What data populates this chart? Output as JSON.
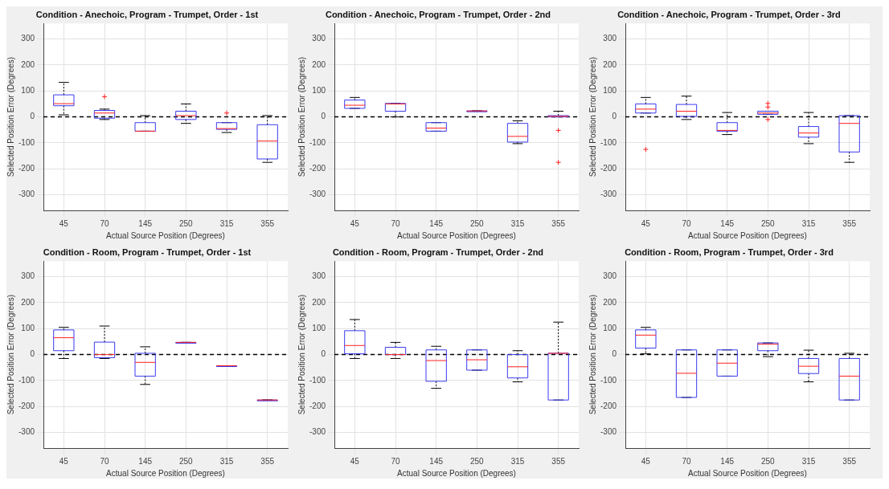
{
  "chart_data": [
    {
      "type": "box",
      "title": "Condition - Anechoic, Program - Trumpet, Order - 1st",
      "xlabel": "Actual Source Position (Degrees)",
      "ylabel": "Selected Position Error (Degrees)",
      "categories": [
        "45",
        "70",
        "145",
        "250",
        "315",
        "355"
      ],
      "ylim": [
        -360,
        360
      ],
      "yticks": [
        -300,
        -200,
        -100,
        0,
        100,
        200,
        300
      ],
      "grid": true,
      "ref_lines": [
        {
          "axis": "y",
          "value": 0,
          "color": "#000000",
          "line_style": "dashed"
        }
      ],
      "boxes": [
        {
          "low": 8,
          "q1": 43,
          "median": 51,
          "q3": 85,
          "high": 133
        },
        {
          "low": -10,
          "q1": -5,
          "median": 15,
          "q3": 25,
          "high": 30,
          "outliers": [
            78
          ]
        },
        {
          "low": -55,
          "q1": -55,
          "median": -55,
          "q3": -22,
          "high": 5
        },
        {
          "low": -25,
          "q1": -10,
          "median": 5,
          "q3": 22,
          "high": 50
        },
        {
          "low": -60,
          "q1": -48,
          "median": -45,
          "q3": -22,
          "high": -22,
          "outliers": [
            15
          ]
        },
        {
          "low": -175,
          "q1": -162,
          "median": -93,
          "q3": -30,
          "high": 5
        }
      ]
    },
    {
      "type": "box",
      "title": "Condition - Anechoic, Program - Trumpet, Order - 2nd",
      "xlabel": "Actual Source Position (Degrees)",
      "ylabel": "Selected Position Error (Degrees)",
      "categories": [
        "45",
        "70",
        "145",
        "250",
        "315",
        "355"
      ],
      "ylim": [
        -360,
        360
      ],
      "yticks": [
        -300,
        -200,
        -100,
        0,
        100,
        200,
        300
      ],
      "grid": true,
      "ref_lines": [
        {
          "axis": "y",
          "value": 0,
          "color": "#000000",
          "line_style": "dashed"
        }
      ],
      "boxes": [
        {
          "low": 33,
          "q1": 33,
          "median": 45,
          "q3": 65,
          "high": 75
        },
        {
          "low": 0,
          "q1": 22,
          "median": 50,
          "q3": 52,
          "high": 52
        },
        {
          "low": -55,
          "q1": -55,
          "median": -43,
          "q3": -22,
          "high": -22
        },
        {
          "low": 23,
          "q1": 23,
          "median": 23,
          "q3": 23,
          "high": 23
        },
        {
          "low": -103,
          "q1": -97,
          "median": -75,
          "q3": -25,
          "high": -15
        },
        {
          "low": 0,
          "q1": 0,
          "median": 2,
          "q3": 5,
          "high": 22,
          "outliers": [
            -52,
            -175
          ]
        }
      ]
    },
    {
      "type": "box",
      "title": "Condition - Anechoic, Program - Trumpet, Order - 3rd",
      "xlabel": "Actual Source Position (Degrees)",
      "ylabel": "Selected Position Error (Degrees)",
      "categories": [
        "45",
        "70",
        "145",
        "250",
        "315",
        "355"
      ],
      "ylim": [
        -360,
        360
      ],
      "yticks": [
        -300,
        -200,
        -100,
        0,
        100,
        200,
        300
      ],
      "grid": true,
      "ref_lines": [
        {
          "axis": "y",
          "value": 0,
          "color": "#000000",
          "line_style": "dashed"
        }
      ],
      "boxes": [
        {
          "low": 15,
          "q1": 15,
          "median": 30,
          "q3": 50,
          "high": 75,
          "outliers": [
            -125
          ]
        },
        {
          "low": -10,
          "q1": 2,
          "median": 22,
          "q3": 48,
          "high": 80
        },
        {
          "low": -68,
          "q1": -55,
          "median": -52,
          "q3": -22,
          "high": 17
        },
        {
          "low": 10,
          "q1": 10,
          "median": 15,
          "q3": 22,
          "high": 22,
          "outliers": [
            52,
            38,
            -10
          ]
        },
        {
          "low": -103,
          "q1": -78,
          "median": -62,
          "q3": -37,
          "high": 17
        },
        {
          "low": -175,
          "q1": -135,
          "median": -25,
          "q3": 5,
          "high": 5
        }
      ]
    },
    {
      "type": "box",
      "title": "Condition - Room, Program - Trumpet, Order - 1st",
      "xlabel": "Actual Source Position (Degrees)",
      "ylabel": "Selected Position Error (Degrees)",
      "categories": [
        "45",
        "70",
        "145",
        "250",
        "315",
        "355"
      ],
      "ylim": [
        -360,
        360
      ],
      "yticks": [
        -300,
        -200,
        -100,
        0,
        100,
        200,
        300
      ],
      "grid": true,
      "ref_lines": [
        {
          "axis": "y",
          "value": 0,
          "color": "#000000",
          "line_style": "dashed"
        }
      ],
      "boxes": [
        {
          "low": -15,
          "q1": 15,
          "median": 65,
          "q3": 95,
          "high": 105
        },
        {
          "low": -15,
          "q1": -12,
          "median": 0,
          "q3": 48,
          "high": 110
        },
        {
          "low": -115,
          "q1": -83,
          "median": -30,
          "q3": 5,
          "high": 30
        },
        {
          "low": 47,
          "q1": 47,
          "median": 47,
          "q3": 47,
          "high": 47
        },
        {
          "low": -43,
          "q1": -43,
          "median": -43,
          "q3": -43,
          "high": -43
        },
        {
          "low": -175,
          "q1": -175,
          "median": -175,
          "q3": -175,
          "high": -175
        }
      ]
    },
    {
      "type": "box",
      "title": "Condition - Room, Program - Trumpet, Order - 2nd",
      "xlabel": "Actual Source Position (Degrees)",
      "ylabel": "Selected Position Error (Degrees)",
      "categories": [
        "45",
        "70",
        "145",
        "250",
        "315",
        "355"
      ],
      "ylim": [
        -360,
        360
      ],
      "yticks": [
        -300,
        -200,
        -100,
        0,
        100,
        200,
        300
      ],
      "grid": true,
      "ref_lines": [
        {
          "axis": "y",
          "value": 0,
          "color": "#000000",
          "line_style": "dashed"
        }
      ],
      "boxes": [
        {
          "low": -15,
          "q1": 3,
          "median": 35,
          "q3": 92,
          "high": 135
        },
        {
          "low": -15,
          "q1": 0,
          "median": 0,
          "q3": 28,
          "high": 47
        },
        {
          "low": -130,
          "q1": -103,
          "median": -23,
          "q3": 18,
          "high": 32
        },
        {
          "low": -60,
          "q1": -60,
          "median": -20,
          "q3": 18,
          "high": 18
        },
        {
          "low": -105,
          "q1": -90,
          "median": -47,
          "q3": 0,
          "high": 15
        },
        {
          "low": -175,
          "q1": -175,
          "median": 5,
          "q3": 5,
          "high": 125
        }
      ]
    },
    {
      "type": "box",
      "title": "Condition - Room, Program - Trumpet, Order - 3rd",
      "xlabel": "Actual Source Position (Degrees)",
      "ylabel": "Selected Position Error (Degrees)",
      "categories": [
        "45",
        "70",
        "145",
        "250",
        "315",
        "355"
      ],
      "ylim": [
        -360,
        360
      ],
      "yticks": [
        -300,
        -200,
        -100,
        0,
        100,
        200,
        300
      ],
      "grid": true,
      "ref_lines": [
        {
          "axis": "y",
          "value": 0,
          "color": "#000000",
          "line_style": "dashed"
        }
      ],
      "boxes": [
        {
          "low": 3,
          "q1": 25,
          "median": 75,
          "q3": 95,
          "high": 105
        },
        {
          "low": -165,
          "q1": -165,
          "median": -72,
          "q3": 18,
          "high": 18
        },
        {
          "low": -83,
          "q1": -83,
          "median": -33,
          "q3": 18,
          "high": 18
        },
        {
          "low": -8,
          "q1": 15,
          "median": 40,
          "q3": 45,
          "high": 45
        },
        {
          "low": -105,
          "q1": -73,
          "median": -45,
          "q3": -15,
          "high": 17
        },
        {
          "low": -175,
          "q1": -175,
          "median": -83,
          "q3": -15,
          "high": 5
        }
      ]
    }
  ]
}
